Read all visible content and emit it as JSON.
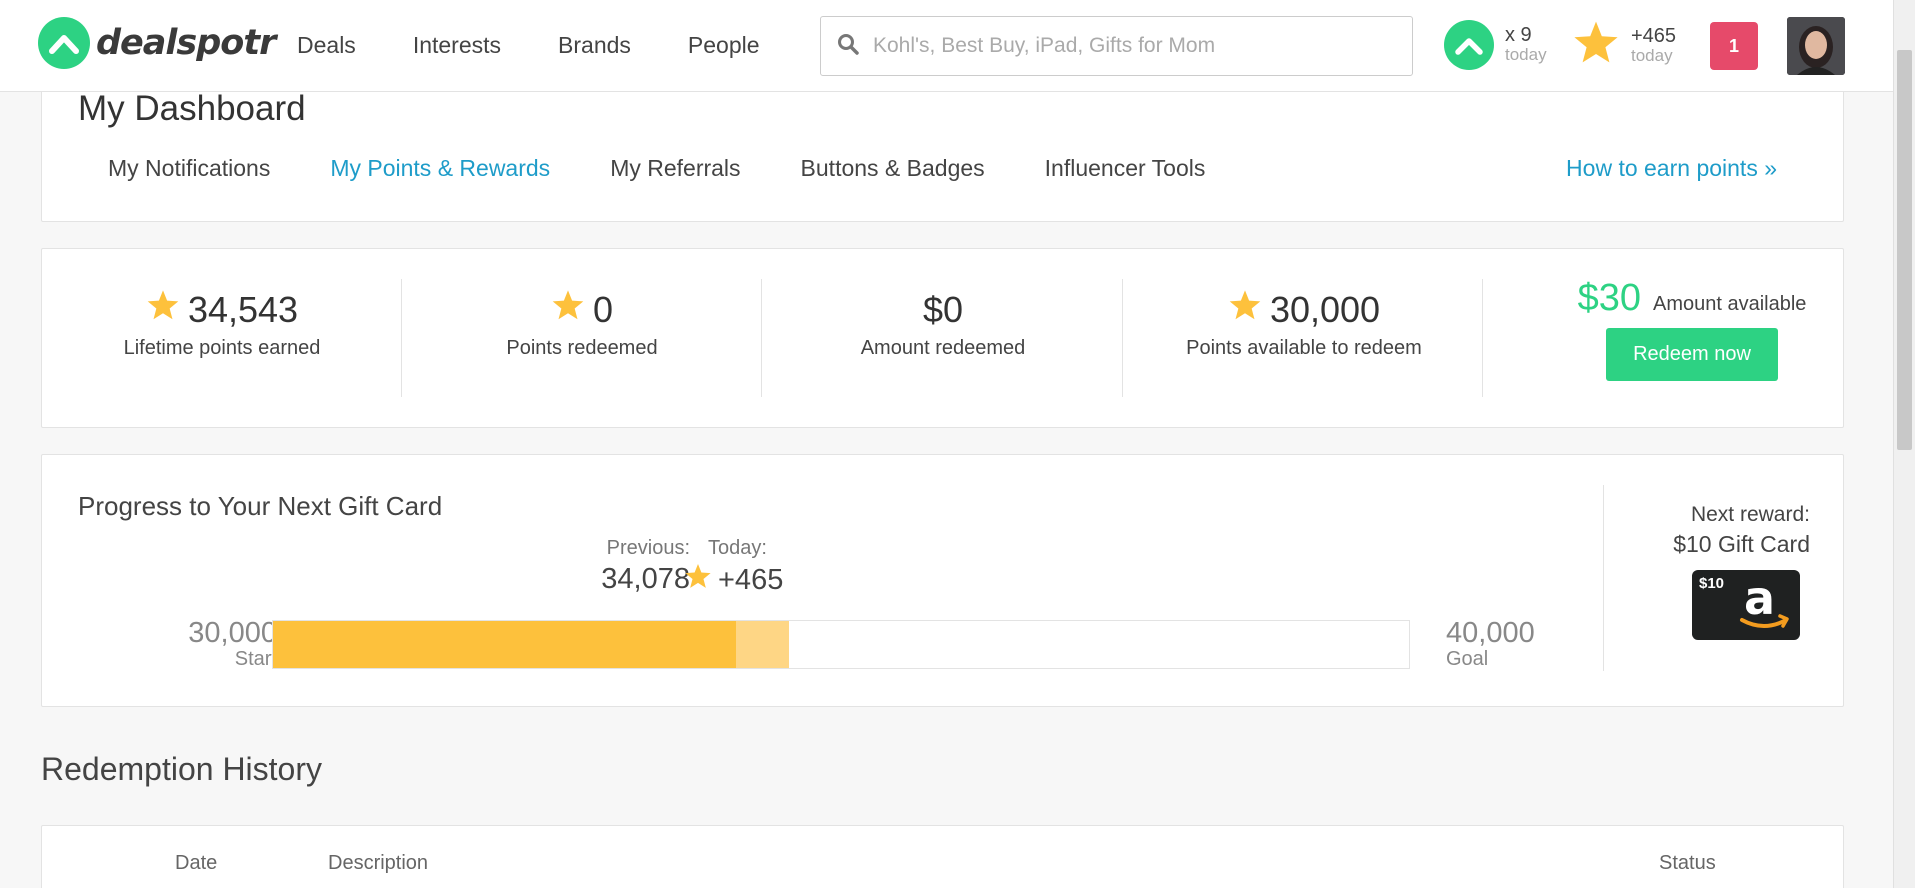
{
  "header": {
    "brand": "dealspotr",
    "nav": [
      "Deals",
      "Interests",
      "Brands",
      "People"
    ],
    "search_placeholder": "Kohl's, Best Buy, iPad, Gifts for Mom",
    "upvotes_value": "x 9",
    "upvotes_label": "today",
    "points_value": "+465",
    "points_label": "today",
    "notification_count": "1"
  },
  "dashboard": {
    "title": "My Dashboard",
    "tabs": [
      "My Notifications",
      "My Points & Rewards",
      "My Referrals",
      "Buttons & Badges",
      "Influencer Tools"
    ],
    "active_tab": "My Points & Rewards",
    "earn_link": "How to earn points »"
  },
  "stats": [
    {
      "value": "34,543",
      "label": "Lifetime points earned",
      "star": true
    },
    {
      "value": "0",
      "label": "Points redeemed",
      "star": true
    },
    {
      "value": "$0",
      "label": "Amount redeemed",
      "star": false
    },
    {
      "value": "30,000",
      "label": "Points available to redeem",
      "star": true
    }
  ],
  "available": {
    "amount": "$30",
    "label": "Amount available",
    "button": "Redeem now"
  },
  "progress": {
    "title": "Progress to Your Next Gift Card",
    "previous_label": "Previous:",
    "previous_value": "34,078",
    "today_label": "Today:",
    "today_value": "+465",
    "start_value": "30,000",
    "start_label": "Start",
    "goal_value": "40,000",
    "goal_label": "Goal",
    "previous_fraction": 0.4078,
    "today_fraction": 0.0465,
    "next_reward_label": "Next reward:",
    "next_reward_value": "$10 Gift Card",
    "gift_card_amount": "$10"
  },
  "history": {
    "title": "Redemption History",
    "columns": [
      "Date",
      "Description",
      "Status"
    ]
  },
  "colors": {
    "brand_green": "#2dd283",
    "link_blue": "#1e9cc9",
    "star_gold": "#fdc13c",
    "notification_red": "#e64a6a"
  }
}
